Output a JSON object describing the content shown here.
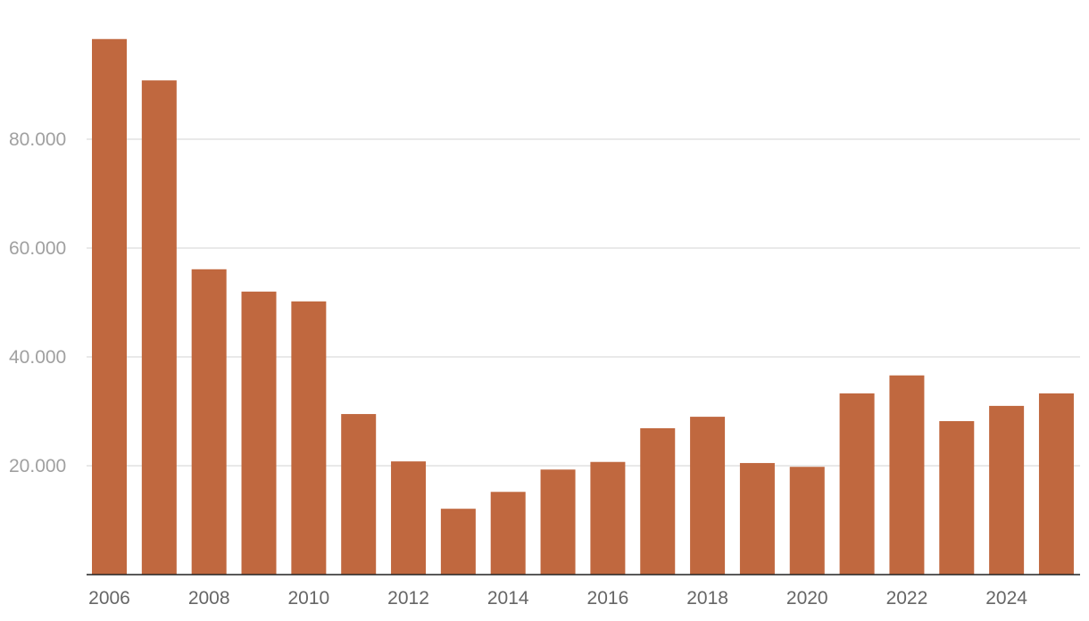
{
  "chart_data": {
    "type": "bar",
    "title": "",
    "xlabel": "",
    "ylabel": "",
    "color": "#c0683f",
    "categories": [
      "2006",
      "2007",
      "2008",
      "2009",
      "2010",
      "2011",
      "2012",
      "2013",
      "2014",
      "2015",
      "2016",
      "2017",
      "2018",
      "2019",
      "2020",
      "2021",
      "2022",
      "2023",
      "2024",
      "2025"
    ],
    "values": [
      98400,
      90800,
      56100,
      52000,
      50200,
      29500,
      20800,
      12100,
      15200,
      19300,
      20700,
      26900,
      29000,
      20500,
      19800,
      33300,
      36600,
      28200,
      31000,
      33300
    ],
    "ylim": [
      0,
      98400
    ],
    "yticks": [
      20000,
      40000,
      60000,
      80000
    ],
    "ytick_labels": [
      "20.000",
      "40.000",
      "60.000",
      "80.000"
    ],
    "xtick_labels": [
      "2006",
      "2008",
      "2010",
      "2012",
      "2014",
      "2016",
      "2018",
      "2020",
      "2022",
      "2024"
    ],
    "grid": true,
    "legend": "none"
  }
}
